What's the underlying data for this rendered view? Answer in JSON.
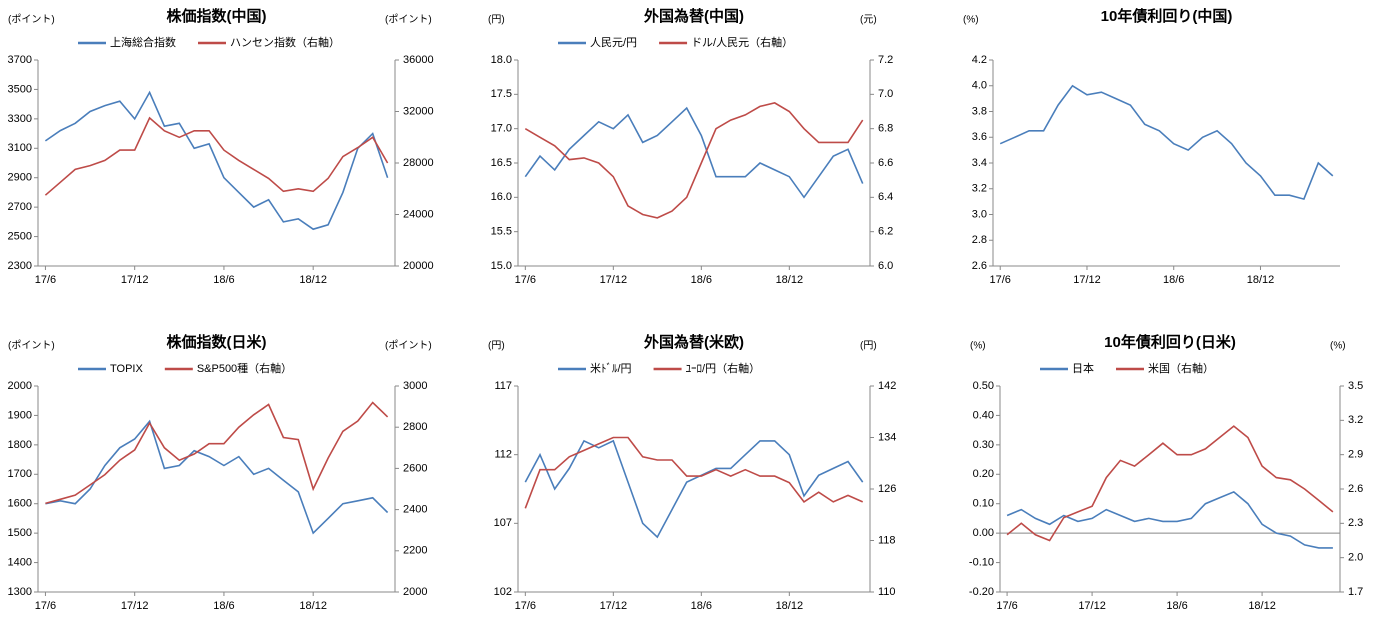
{
  "chart_data": [
    {
      "type": "line",
      "title": "株価指数(中国)",
      "y_label": "(ポイント)",
      "y2_label": "(ポイント)",
      "categories": [
        "17/6",
        null,
        null,
        null,
        null,
        null,
        "17/12",
        null,
        null,
        null,
        null,
        null,
        "18/6",
        null,
        null,
        null,
        null,
        null,
        "18/12",
        null,
        null,
        null,
        null,
        null
      ],
      "ylim": [
        2300,
        3700
      ],
      "yticks": [
        2300,
        2500,
        2700,
        2900,
        3100,
        3300,
        3500,
        3700
      ],
      "y2lim": [
        20000,
        36000
      ],
      "y2ticks": [
        20000,
        24000,
        28000,
        32000,
        36000
      ],
      "series": [
        {
          "name": "上海総合指数",
          "color": "#4a7ebb",
          "values": [
            3150,
            3220,
            3270,
            3350,
            3390,
            3420,
            3300,
            3480,
            3250,
            3270,
            3100,
            3130,
            2900,
            2800,
            2700,
            2750,
            2600,
            2620,
            2550,
            2580,
            2800,
            3100,
            3200,
            2900
          ]
        },
        {
          "name": "ハンセン指数（右軸）",
          "color": "#be4b48",
          "axis": "y2",
          "values": [
            25500,
            26500,
            27500,
            27800,
            28200,
            29000,
            29000,
            31500,
            30500,
            30000,
            30500,
            30500,
            29000,
            28200,
            27500,
            26800,
            25800,
            26000,
            25800,
            26800,
            28500,
            29200,
            30000,
            28000
          ]
        }
      ]
    },
    {
      "type": "line",
      "title": "外国為替(中国)",
      "y_label": "(円)",
      "y2_label": "(元)",
      "categories": [
        "17/6",
        null,
        null,
        null,
        null,
        null,
        "17/12",
        null,
        null,
        null,
        null,
        null,
        "18/6",
        null,
        null,
        null,
        null,
        null,
        "18/12",
        null,
        null,
        null,
        null,
        null
      ],
      "ylim": [
        15.0,
        18.0
      ],
      "yticks": [
        {
          "value": 15,
          "label": "15.0"
        },
        15.5,
        {
          "value": 16,
          "label": "16.0"
        },
        16.5,
        {
          "value": 17,
          "label": "17.0"
        },
        17.5,
        {
          "value": 18,
          "label": "18.0"
        }
      ],
      "y2lim": [
        6.0,
        7.2
      ],
      "y2ticks": [
        {
          "value": 6,
          "label": "6.0"
        },
        6.2,
        6.4,
        6.6,
        6.8,
        {
          "value": 7,
          "label": "7.0"
        },
        7.2
      ],
      "series": [
        {
          "name": "人民元/円",
          "color": "#4a7ebb",
          "values": [
            16.3,
            16.6,
            16.4,
            16.7,
            16.9,
            17.1,
            17.0,
            17.2,
            16.8,
            16.9,
            17.1,
            17.3,
            16.9,
            16.3,
            16.3,
            16.3,
            16.5,
            16.4,
            16.3,
            16.0,
            16.3,
            16.6,
            16.7,
            16.2
          ]
        },
        {
          "name": "ドル/人民元（右軸）",
          "color": "#be4b48",
          "axis": "y2",
          "values": [
            6.8,
            6.75,
            6.7,
            6.62,
            6.63,
            6.6,
            6.52,
            6.35,
            6.3,
            6.28,
            6.32,
            6.4,
            6.6,
            6.8,
            6.85,
            6.88,
            6.93,
            6.95,
            6.9,
            6.8,
            6.72,
            6.72,
            6.72,
            6.85
          ]
        }
      ]
    },
    {
      "type": "line",
      "title": "10年債利回り(中国)",
      "y_label": "(%)",
      "categories": [
        "17/6",
        null,
        null,
        null,
        null,
        null,
        "17/12",
        null,
        null,
        null,
        null,
        null,
        "18/6",
        null,
        null,
        null,
        null,
        null,
        "18/12",
        null,
        null,
        null,
        null,
        null
      ],
      "ylim": [
        2.6,
        4.2
      ],
      "yticks": [
        2.6,
        2.8,
        {
          "value": 3,
          "label": "3.0"
        },
        3.2,
        3.4,
        3.6,
        3.8,
        {
          "value": 4,
          "label": "4.0"
        },
        4.2
      ],
      "series": [
        {
          "color": "#4a7ebb",
          "values": [
            3.55,
            3.6,
            3.65,
            3.65,
            3.85,
            4.0,
            3.93,
            3.95,
            3.9,
            3.85,
            3.7,
            3.65,
            3.55,
            3.5,
            3.6,
            3.65,
            3.55,
            3.4,
            3.3,
            3.15,
            3.15,
            3.12,
            3.4,
            3.3
          ]
        }
      ]
    },
    {
      "type": "line",
      "title": "株価指数(日米)",
      "y_label": "(ポイント)",
      "y2_label": "(ポイント)",
      "categories": [
        "17/6",
        null,
        null,
        null,
        null,
        null,
        "17/12",
        null,
        null,
        null,
        null,
        null,
        "18/6",
        null,
        null,
        null,
        null,
        null,
        "18/12",
        null,
        null,
        null,
        null,
        null
      ],
      "ylim": [
        1300,
        2000
      ],
      "yticks": [
        1300,
        1400,
        1500,
        1600,
        1700,
        1800,
        1900,
        2000
      ],
      "y2lim": [
        2000,
        3000
      ],
      "y2ticks": [
        2000,
        2200,
        2400,
        2600,
        2800,
        3000
      ],
      "series": [
        {
          "name": "TOPIX",
          "color": "#4a7ebb",
          "values": [
            1600,
            1610,
            1600,
            1650,
            1730,
            1790,
            1820,
            1880,
            1720,
            1730,
            1780,
            1760,
            1730,
            1760,
            1700,
            1720,
            1680,
            1640,
            1500,
            1550,
            1600,
            1610,
            1620,
            1570
          ]
        },
        {
          "name": "S&P500種（右軸）",
          "color": "#be4b48",
          "axis": "y2",
          "values": [
            2430,
            2450,
            2470,
            2520,
            2570,
            2640,
            2690,
            2820,
            2700,
            2640,
            2670,
            2720,
            2720,
            2800,
            2860,
            2910,
            2750,
            2740,
            2500,
            2650,
            2780,
            2830,
            2920,
            2850
          ]
        }
      ]
    },
    {
      "type": "line",
      "title": "外国為替(米欧)",
      "y_label": "(円)",
      "y2_label": "(円)",
      "categories": [
        "17/6",
        null,
        null,
        null,
        null,
        null,
        "17/12",
        null,
        null,
        null,
        null,
        null,
        "18/6",
        null,
        null,
        null,
        null,
        null,
        "18/12",
        null,
        null,
        null,
        null,
        null
      ],
      "ylim": [
        102,
        117
      ],
      "yticks": [
        102,
        107,
        112,
        117
      ],
      "y2lim": [
        110,
        142
      ],
      "y2ticks": [
        110,
        118,
        126,
        134,
        142
      ],
      "series": [
        {
          "name": "米ﾄﾞﾙ/円",
          "color": "#4a7ebb",
          "values": [
            110,
            112,
            109.5,
            111,
            113,
            112.5,
            113,
            110,
            107,
            106,
            108,
            110,
            110.5,
            111,
            111,
            112,
            113,
            113,
            112,
            109,
            110.5,
            111,
            111.5,
            110
          ]
        },
        {
          "name": "ﾕｰﾛ/円（右軸）",
          "color": "#be4b48",
          "axis": "y2",
          "values": [
            123,
            129,
            129,
            131,
            132,
            133,
            134,
            134,
            131,
            130.5,
            130.5,
            128,
            128,
            129,
            128,
            129,
            128,
            128,
            127,
            124,
            125.5,
            124,
            125,
            124
          ]
        }
      ]
    },
    {
      "type": "line",
      "title": "10年債利回り(日米)",
      "y_label": "(%)",
      "y2_label": "(%)",
      "categories": [
        "17/6",
        null,
        null,
        null,
        null,
        null,
        "17/12",
        null,
        null,
        null,
        null,
        null,
        "18/6",
        null,
        null,
        null,
        null,
        null,
        "18/12",
        null,
        null,
        null,
        null,
        null
      ],
      "ylim": [
        -0.2,
        0.5
      ],
      "yticks": [
        {
          "value": -0.2,
          "label": "-0.20"
        },
        {
          "value": -0.1,
          "label": "-0.10"
        },
        {
          "value": 0,
          "label": "0.00"
        },
        {
          "value": 0.1,
          "label": "0.10"
        },
        {
          "value": 0.2,
          "label": "0.20"
        },
        {
          "value": 0.3,
          "label": "0.30"
        },
        {
          "value": 0.4,
          "label": "0.40"
        },
        {
          "value": 0.5,
          "label": "0.50"
        }
      ],
      "negative_tick_color": "#ff0000",
      "zero_line": true,
      "y2lim": [
        1.7,
        3.5
      ],
      "y2ticks": [
        1.7,
        {
          "value": 2,
          "label": "2.0"
        },
        2.3,
        2.6,
        2.9,
        3.2,
        3.5
      ],
      "series": [
        {
          "name": "日本",
          "color": "#4a7ebb",
          "values": [
            0.06,
            0.08,
            0.05,
            0.03,
            0.06,
            0.04,
            0.05,
            0.08,
            0.06,
            0.04,
            0.05,
            0.04,
            0.04,
            0.05,
            0.1,
            0.12,
            0.14,
            0.1,
            0.03,
            0.0,
            -0.01,
            -0.04,
            -0.05,
            -0.05
          ]
        },
        {
          "name": "米国（右軸）",
          "color": "#be4b48",
          "axis": "y2",
          "values": [
            2.2,
            2.3,
            2.2,
            2.15,
            2.35,
            2.4,
            2.45,
            2.7,
            2.85,
            2.8,
            2.9,
            3.0,
            2.9,
            2.9,
            2.95,
            3.05,
            3.15,
            3.05,
            2.8,
            2.7,
            2.68,
            2.6,
            2.5,
            2.4
          ]
        }
      ]
    }
  ]
}
